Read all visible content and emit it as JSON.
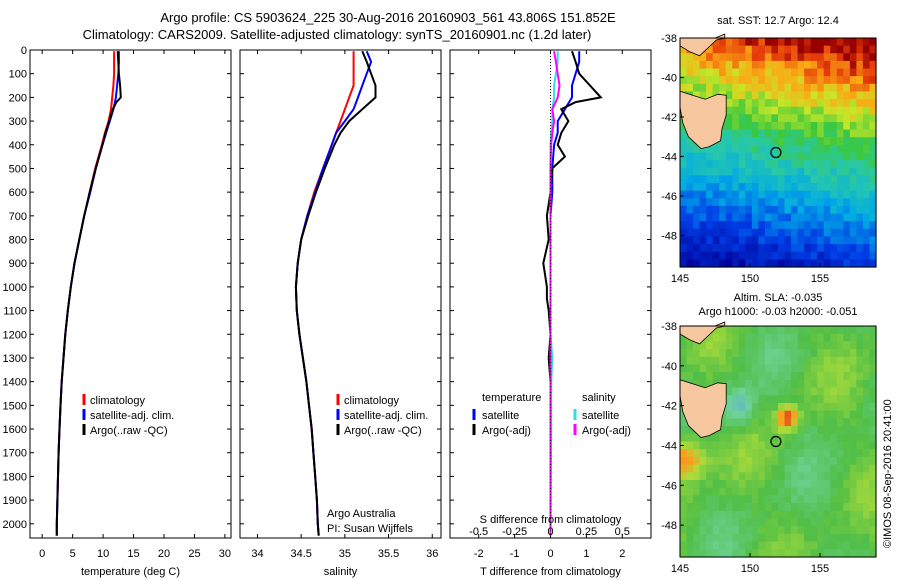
{
  "header": {
    "line1": "Argo profile: CS 5903624_225 30-Aug-2016 20160903_561 43.806S 151.852E",
    "line2": "Climatology: CARS2009. Satellite-adjusted climatology: synTS_20160901.nc (1.2d later)"
  },
  "credit": "©IMOS 08-Sep-2016 20:41:00",
  "colors": {
    "climatology": "#ff0000",
    "satellite": "#0000ff",
    "argo": "#000000",
    "sal_satellite": "#33dddd",
    "sal_argo": "#ff00ff",
    "land": "#f7c8a0"
  },
  "chart_data": [
    {
      "id": "temperature",
      "type": "line",
      "xlabel": "temperature (deg C)",
      "xlim": [
        -2,
        31
      ],
      "xticks": [
        0,
        5,
        10,
        15,
        20,
        25,
        30
      ],
      "ylim": [
        0,
        2060
      ],
      "yticks": [
        0,
        100,
        200,
        300,
        400,
        500,
        600,
        700,
        800,
        900,
        1000,
        1100,
        1200,
        1300,
        1400,
        1500,
        1600,
        1700,
        1800,
        1900,
        2000
      ],
      "legend": [
        "climatology",
        "satellite-adj. clim.",
        "Argo(..raw -QC)"
      ],
      "series": [
        {
          "name": "climatology",
          "depth": [
            5,
            50,
            100,
            150,
            200,
            250,
            300,
            350,
            400,
            500,
            600,
            700,
            800,
            900,
            1000,
            1100,
            1200,
            1300,
            1400,
            1500,
            1600,
            1700,
            1800,
            1900,
            2000,
            2050
          ],
          "values": [
            11.8,
            11.8,
            11.8,
            11.7,
            11.5,
            11.3,
            10.9,
            10.3,
            9.8,
            8.7,
            7.8,
            6.9,
            6.1,
            5.3,
            4.7,
            4.2,
            3.8,
            3.5,
            3.2,
            3.0,
            2.85,
            2.7,
            2.6,
            2.5,
            2.4,
            2.4
          ]
        },
        {
          "name": "satellite-adj. clim.",
          "depth": [
            5,
            50,
            100,
            150,
            200,
            250,
            300,
            350,
            400,
            500,
            600,
            700,
            800,
            900,
            1000,
            1100,
            1200,
            1300,
            1400,
            1500,
            1600,
            1700,
            1800,
            1900,
            2000,
            2050
          ],
          "values": [
            12.6,
            12.6,
            12.5,
            12.3,
            12.1,
            11.7,
            11.1,
            10.5,
            9.9,
            8.8,
            7.9,
            6.9,
            6.1,
            5.3,
            4.7,
            4.2,
            3.8,
            3.5,
            3.2,
            3.0,
            2.85,
            2.7,
            2.6,
            2.5,
            2.4,
            2.4
          ]
        },
        {
          "name": "Argo(..raw -QC)",
          "depth": [
            5,
            50,
            100,
            150,
            200,
            220,
            250,
            300,
            350,
            400,
            500,
            600,
            700,
            800,
            900,
            1000,
            1100,
            1200,
            1300,
            1400,
            1500,
            1600,
            1700,
            1800,
            1900,
            2000,
            2050
          ],
          "values": [
            12.4,
            12.5,
            12.6,
            12.8,
            12.9,
            12.2,
            11.6,
            11.0,
            10.4,
            9.9,
            8.8,
            7.8,
            6.9,
            6.1,
            5.3,
            4.7,
            4.2,
            3.8,
            3.5,
            3.2,
            3.0,
            2.85,
            2.7,
            2.6,
            2.5,
            2.4,
            2.4
          ]
        }
      ]
    },
    {
      "id": "salinity",
      "type": "line",
      "xlabel": "salinity",
      "xlim": [
        33.8,
        36.1
      ],
      "xticks": [
        34,
        34.5,
        35,
        35.5,
        36
      ],
      "ylim": [
        0,
        2060
      ],
      "legend": [
        "climatology",
        "satellite-adj. clim.",
        "Argo(..raw -QC)"
      ],
      "annotation": [
        "Argo Australia",
        "PI: Susan Wijffels"
      ],
      "series": [
        {
          "name": "climatology",
          "depth": [
            5,
            50,
            100,
            150,
            200,
            250,
            300,
            350,
            400,
            500,
            600,
            700,
            800,
            900,
            1000,
            1100,
            1200,
            1300,
            1400,
            1500,
            1600,
            1700,
            1800,
            1900,
            2000,
            2050
          ],
          "values": [
            35.1,
            35.1,
            35.1,
            35.1,
            35.05,
            35.0,
            34.95,
            34.9,
            34.85,
            34.75,
            34.65,
            34.57,
            34.5,
            34.46,
            34.44,
            34.45,
            34.48,
            34.52,
            34.56,
            34.59,
            34.62,
            34.64,
            34.66,
            34.68,
            34.69,
            34.7
          ]
        },
        {
          "name": "satellite-adj. clim.",
          "depth": [
            5,
            50,
            100,
            150,
            200,
            250,
            300,
            350,
            400,
            500,
            600,
            700,
            800,
            900,
            1000,
            1100,
            1200,
            1300,
            1400,
            1500,
            1600,
            1700,
            1800,
            1900,
            2000,
            2050
          ],
          "values": [
            35.25,
            35.3,
            35.25,
            35.2,
            35.15,
            35.1,
            35.0,
            34.9,
            34.85,
            34.75,
            34.66,
            34.57,
            34.5,
            34.46,
            34.44,
            34.45,
            34.48,
            34.52,
            34.56,
            34.59,
            34.62,
            34.64,
            34.66,
            34.68,
            34.69,
            34.7
          ]
        },
        {
          "name": "Argo(..raw -QC)",
          "depth": [
            5,
            50,
            100,
            150,
            200,
            250,
            300,
            350,
            400,
            500,
            600,
            700,
            800,
            900,
            1000,
            1100,
            1200,
            1300,
            1400,
            1500,
            1600,
            1700,
            1800,
            1900,
            2000,
            2050
          ],
          "values": [
            35.2,
            35.25,
            35.3,
            35.35,
            35.35,
            35.2,
            35.05,
            34.95,
            34.88,
            34.77,
            34.67,
            34.58,
            34.5,
            34.46,
            34.44,
            34.45,
            34.48,
            34.52,
            34.56,
            34.59,
            34.62,
            34.64,
            34.66,
            34.68,
            34.69,
            34.7
          ]
        }
      ]
    },
    {
      "id": "difference",
      "type": "line",
      "xlabel": "T difference from climatology",
      "xlabel_top": "S difference from climatology",
      "xlim": [
        -2.8,
        2.8
      ],
      "xticks": [
        -2,
        -1,
        0,
        1,
        2
      ],
      "xticks_top": [
        -0.5,
        -0.25,
        0,
        0.25,
        0.5
      ],
      "ylim": [
        0,
        2060
      ],
      "legend_titles": [
        "temperature",
        "salinity"
      ],
      "legend_temperature": [
        "satellite",
        "Argo(-adj)"
      ],
      "legend_salinity": [
        "satellite",
        "Argo(-adj)"
      ],
      "series": [
        {
          "name": "temperature satellite",
          "depth": [
            5,
            50,
            100,
            150,
            200,
            250,
            300,
            350,
            400,
            500,
            600,
            700,
            800,
            900,
            1000,
            1200,
            1500,
            1800,
            2050
          ],
          "values": [
            0.8,
            0.8,
            0.7,
            0.6,
            0.6,
            0.4,
            0.2,
            0.2,
            0.1,
            0.05,
            0.05,
            0,
            0,
            0,
            0,
            0,
            0,
            0,
            0
          ]
        },
        {
          "name": "temperature Argo(-adj)",
          "depth": [
            5,
            50,
            100,
            150,
            200,
            220,
            250,
            300,
            350,
            400,
            450,
            500,
            600,
            700,
            800,
            900,
            1000,
            1050,
            1100,
            1200,
            1300,
            1400,
            1500,
            1600,
            1800,
            2050
          ],
          "values": [
            0.6,
            0.7,
            0.8,
            1.1,
            1.4,
            0.7,
            0.3,
            0.5,
            0.3,
            0.2,
            0.4,
            0.05,
            0.0,
            -0.1,
            -0.05,
            -0.2,
            -0.1,
            -0.1,
            -0.05,
            0.0,
            -0.05,
            0.0,
            0.0,
            0.0,
            0.0,
            0.0
          ]
        },
        {
          "name": "salinity satellite",
          "depth": [
            5,
            50,
            100,
            150,
            200,
            250,
            300,
            350,
            400,
            500,
            600,
            800,
            1000,
            1200,
            1300,
            1400,
            1500,
            1600,
            1800,
            2050
          ],
          "values": [
            0.2,
            0.2,
            0.15,
            0.1,
            0.1,
            0.05,
            0.05,
            0.02,
            0,
            0,
            0,
            0,
            0,
            0,
            0.05,
            0.02,
            0.02,
            0.02,
            0.01,
            0
          ]
        },
        {
          "name": "salinity Argo(-adj)",
          "depth": [
            5,
            50,
            100,
            150,
            200,
            250,
            300,
            350,
            400,
            500,
            600,
            800,
            1000,
            1200,
            1500,
            1800,
            2050
          ],
          "values": [
            0.1,
            0.15,
            0.2,
            0.25,
            0.2,
            0.05,
            0.1,
            0.05,
            0.02,
            0,
            0,
            0,
            0,
            0,
            0,
            0,
            0
          ]
        }
      ]
    },
    {
      "id": "sst_map",
      "type": "heatmap",
      "title": "sat. SST: 12.7 Argo: 12.4",
      "xlim": [
        145,
        159
      ],
      "ylim": [
        -49.6,
        -38
      ],
      "xticks": [
        145,
        150,
        155
      ],
      "yticks": [
        -38,
        -40,
        -42,
        -44,
        -46,
        -48
      ],
      "profile_position": [
        151.85,
        -43.8
      ]
    },
    {
      "id": "sla_map",
      "type": "heatmap",
      "title": [
        "Altim. SLA: -0.035",
        "Argo h1000: -0.03 h2000: -0.051"
      ],
      "xlim": [
        145,
        159
      ],
      "ylim": [
        -49.6,
        -38
      ],
      "xticks": [
        145,
        150,
        155
      ],
      "yticks": [
        -38,
        -40,
        -42,
        -44,
        -46,
        -48
      ],
      "profile_position": [
        151.85,
        -43.8
      ]
    }
  ]
}
